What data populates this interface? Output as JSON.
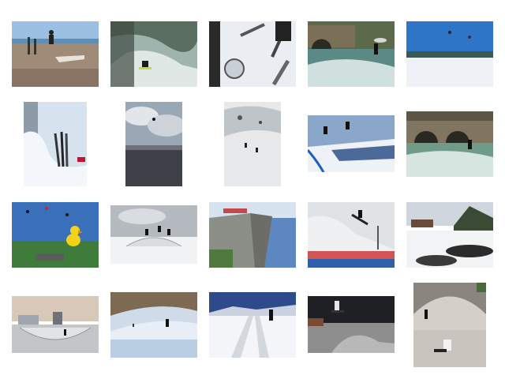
{
  "gallery": {
    "thumbnails": [
      {
        "id": "t1",
        "subject": "skateboard-jump-boardwalk"
      },
      {
        "id": "t2",
        "subject": "river-surfer"
      },
      {
        "id": "t3",
        "subject": "skis-on-snow-closeup"
      },
      {
        "id": "t4",
        "subject": "river-wave-surfer-bridge"
      },
      {
        "id": "t5",
        "subject": "snowy-field-kites-blue-sky"
      },
      {
        "id": "t6",
        "subject": "skis-stuck-in-snow"
      },
      {
        "id": "t7",
        "subject": "kite-over-sea-clouds"
      },
      {
        "id": "t8",
        "subject": "snowy-mountain-slope-skiers"
      },
      {
        "id": "t9",
        "subject": "ski-jumpers-midair"
      },
      {
        "id": "t10",
        "subject": "river-surfer-under-bridge"
      },
      {
        "id": "t11",
        "subject": "kite-festival-duck"
      },
      {
        "id": "t12",
        "subject": "snowboard-park-jumpers"
      },
      {
        "id": "t13",
        "subject": "cliff-crowd-fjord"
      },
      {
        "id": "t14",
        "subject": "ski-jump-competition"
      },
      {
        "id": "t15",
        "subject": "snowboard-closeup-mountains"
      },
      {
        "id": "t16",
        "subject": "skate-bowl-buildings"
      },
      {
        "id": "t17",
        "subject": "ski-slope-skiers"
      },
      {
        "id": "t18",
        "subject": "groomed-ski-track-skier"
      },
      {
        "id": "t19",
        "subject": "skateboarder-ramp-jump"
      },
      {
        "id": "t20",
        "subject": "skate-bowl-skaters"
      }
    ]
  }
}
